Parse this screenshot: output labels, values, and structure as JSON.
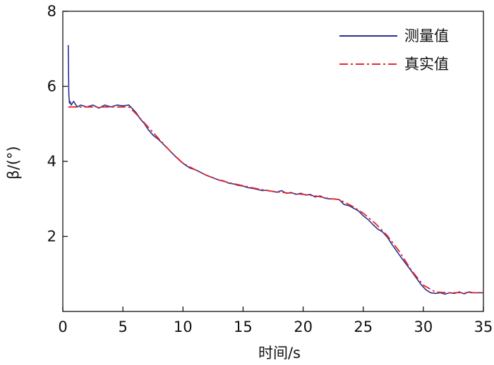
{
  "chart_data": {
    "type": "line",
    "xlabel": "时间/s",
    "ylabel": "β/(°)",
    "xlim": [
      0,
      35
    ],
    "ylim": [
      0,
      8
    ],
    "xticks": [
      "0",
      "5",
      "10",
      "15",
      "20",
      "25",
      "30",
      "35"
    ],
    "yticks": [
      "2",
      "4",
      "6",
      "8"
    ],
    "grid": false,
    "legend_position": "top-right",
    "series": [
      {
        "name": "测量值",
        "color": "#2b2f8f",
        "style": "solid",
        "x": [
          0.45,
          0.5,
          0.55,
          0.6,
          0.7,
          0.9,
          1.2,
          1.5,
          2.0,
          2.5,
          3.0,
          3.5,
          4.0,
          4.5,
          5.0,
          5.5,
          5.8,
          6.1,
          6.4,
          6.8,
          7.1,
          7.5,
          7.9,
          8.3,
          8.7,
          9.0,
          9.4,
          9.8,
          10.2,
          10.6,
          11.0,
          11.4,
          11.8,
          12.2,
          12.6,
          13.0,
          13.4,
          13.8,
          14.2,
          14.6,
          15.0,
          15.4,
          15.8,
          16.2,
          16.6,
          17.0,
          17.4,
          17.8,
          18.2,
          18.6,
          19.0,
          19.4,
          19.8,
          20.2,
          20.6,
          21.0,
          21.4,
          21.8,
          22.2,
          22.6,
          23.0,
          23.4,
          23.8,
          24.2,
          24.6,
          25.0,
          25.4,
          25.8,
          26.2,
          26.6,
          27.0,
          27.4,
          27.8,
          28.2,
          28.6,
          29.0,
          29.4,
          29.8,
          30.2,
          30.6,
          31.0,
          31.4,
          31.8,
          32.2,
          32.6,
          33.0,
          33.4,
          33.8,
          34.2,
          34.6,
          35.0
        ],
        "y": [
          7.1,
          5.8,
          5.55,
          5.6,
          5.5,
          5.6,
          5.45,
          5.5,
          5.45,
          5.5,
          5.42,
          5.5,
          5.45,
          5.5,
          5.48,
          5.5,
          5.4,
          5.3,
          5.15,
          5.0,
          4.85,
          4.7,
          4.6,
          4.48,
          4.35,
          4.25,
          4.12,
          4.0,
          3.9,
          3.82,
          3.78,
          3.72,
          3.65,
          3.6,
          3.55,
          3.5,
          3.48,
          3.42,
          3.4,
          3.36,
          3.34,
          3.3,
          3.28,
          3.25,
          3.22,
          3.23,
          3.2,
          3.18,
          3.22,
          3.15,
          3.17,
          3.12,
          3.15,
          3.1,
          3.12,
          3.05,
          3.08,
          3.02,
          3.0,
          3.0,
          2.98,
          2.85,
          2.82,
          2.75,
          2.68,
          2.55,
          2.45,
          2.32,
          2.2,
          2.12,
          1.98,
          1.78,
          1.6,
          1.42,
          1.25,
          1.08,
          0.9,
          0.72,
          0.58,
          0.5,
          0.48,
          0.5,
          0.46,
          0.5,
          0.48,
          0.52,
          0.47,
          0.52,
          0.5,
          0.5,
          0.5
        ]
      },
      {
        "name": "真实值",
        "color": "#e8262b",
        "style": "dashdot",
        "x": [
          0.45,
          5.5,
          6.0,
          7.0,
          8.0,
          9.0,
          10.0,
          11.0,
          12.0,
          13.0,
          14.0,
          15.0,
          16.0,
          17.0,
          18.0,
          19.0,
          20.0,
          21.0,
          22.0,
          23.0,
          24.0,
          25.0,
          26.0,
          27.0,
          28.0,
          29.0,
          30.0,
          31.0,
          32.0,
          33.0,
          34.0,
          35.0
        ],
        "y": [
          5.45,
          5.45,
          5.3,
          4.95,
          4.6,
          4.25,
          3.95,
          3.78,
          3.62,
          3.5,
          3.42,
          3.35,
          3.28,
          3.22,
          3.18,
          3.15,
          3.12,
          3.08,
          3.02,
          2.98,
          2.82,
          2.62,
          2.35,
          2.02,
          1.6,
          1.1,
          0.7,
          0.52,
          0.5,
          0.5,
          0.5,
          0.5
        ]
      }
    ]
  }
}
